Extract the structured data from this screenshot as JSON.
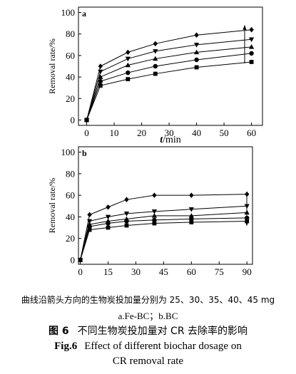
{
  "chart_data": [
    {
      "type": "line",
      "panel_label": "a",
      "xlabel_italic": "t",
      "xlabel_rest": "/min",
      "ylabel": "Removal rate/%",
      "xlim": [
        -3,
        64
      ],
      "ylim": [
        -5,
        105
      ],
      "xticks": [
        0,
        10,
        20,
        30,
        40,
        50,
        60
      ],
      "yticks": [
        0,
        20,
        40,
        60,
        80,
        100
      ],
      "arrow": "up",
      "x": [
        0,
        5,
        15,
        25,
        40,
        60
      ],
      "series": [
        {
          "marker": "square",
          "values": [
            0,
            32,
            38,
            43,
            49,
            54
          ]
        },
        {
          "marker": "circle",
          "values": [
            0,
            36,
            44,
            50,
            56,
            62
          ]
        },
        {
          "marker": "triangle",
          "values": [
            0,
            40,
            51,
            57,
            63,
            68
          ]
        },
        {
          "marker": "tri-down",
          "values": [
            0,
            45,
            57,
            64,
            70,
            75
          ]
        },
        {
          "marker": "diamond",
          "values": [
            0,
            50,
            63,
            71,
            79,
            84
          ]
        }
      ]
    },
    {
      "type": "line",
      "panel_label": "b",
      "xlabel_italic": "",
      "xlabel_rest": "",
      "ylabel": "Removal rate/%",
      "xlim": [
        -1,
        93
      ],
      "ylim": [
        -4,
        105
      ],
      "xticks": [
        0,
        15,
        30,
        45,
        60,
        75,
        90
      ],
      "yticks": [
        0,
        20,
        40,
        60,
        80,
        100
      ],
      "arrow": "down",
      "x": [
        0,
        5,
        15,
        25,
        40,
        60,
        90
      ],
      "series": [
        {
          "marker": "diamond",
          "values": [
            0,
            42,
            49,
            56,
            60,
            60,
            61
          ]
        },
        {
          "marker": "tri-down",
          "values": [
            0,
            36,
            40,
            43,
            45,
            47,
            50
          ]
        },
        {
          "marker": "triangle",
          "values": [
            0,
            33,
            36,
            38,
            41,
            41,
            44
          ]
        },
        {
          "marker": "circle",
          "values": [
            0,
            31,
            34,
            36,
            37,
            38,
            39
          ]
        },
        {
          "marker": "square",
          "values": [
            0,
            28,
            30,
            32,
            34,
            35,
            36
          ]
        }
      ]
    }
  ],
  "caption": {
    "note": "曲线沿箭头方向的生物炭投加量分别为 25、30、35、40、45 mg",
    "sublabels": "a.Fe-BC；b.BC",
    "cn_label": "图 6",
    "cn_title": "不同生物炭投加量对 CR 去除率的影响",
    "en_label": "Fig.6",
    "en_title_1": "Effect of different biochar dosage on",
    "en_title_2": "CR removal rate"
  }
}
